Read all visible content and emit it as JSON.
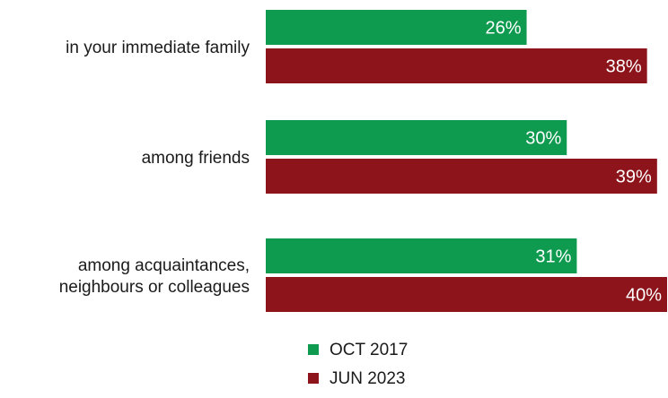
{
  "chart_data": {
    "type": "bar",
    "orientation": "horizontal",
    "categories": [
      [
        "in your immediate family"
      ],
      [
        "among friends"
      ],
      [
        "among acquaintances,",
        "neighbours or colleagues"
      ]
    ],
    "series": [
      {
        "name": "OCT 2017",
        "color": "#0e9b4f",
        "values": [
          26,
          30,
          31
        ],
        "labels": [
          "26%",
          "30%",
          "31%"
        ]
      },
      {
        "name": "JUN 2023",
        "color": "#8c141a",
        "values": [
          38,
          39,
          40
        ],
        "labels": [
          "38%",
          "39%",
          "40%"
        ]
      }
    ],
    "xlim": [
      0,
      40
    ],
    "unit": "%",
    "grid": false,
    "legend_position": "bottom"
  }
}
